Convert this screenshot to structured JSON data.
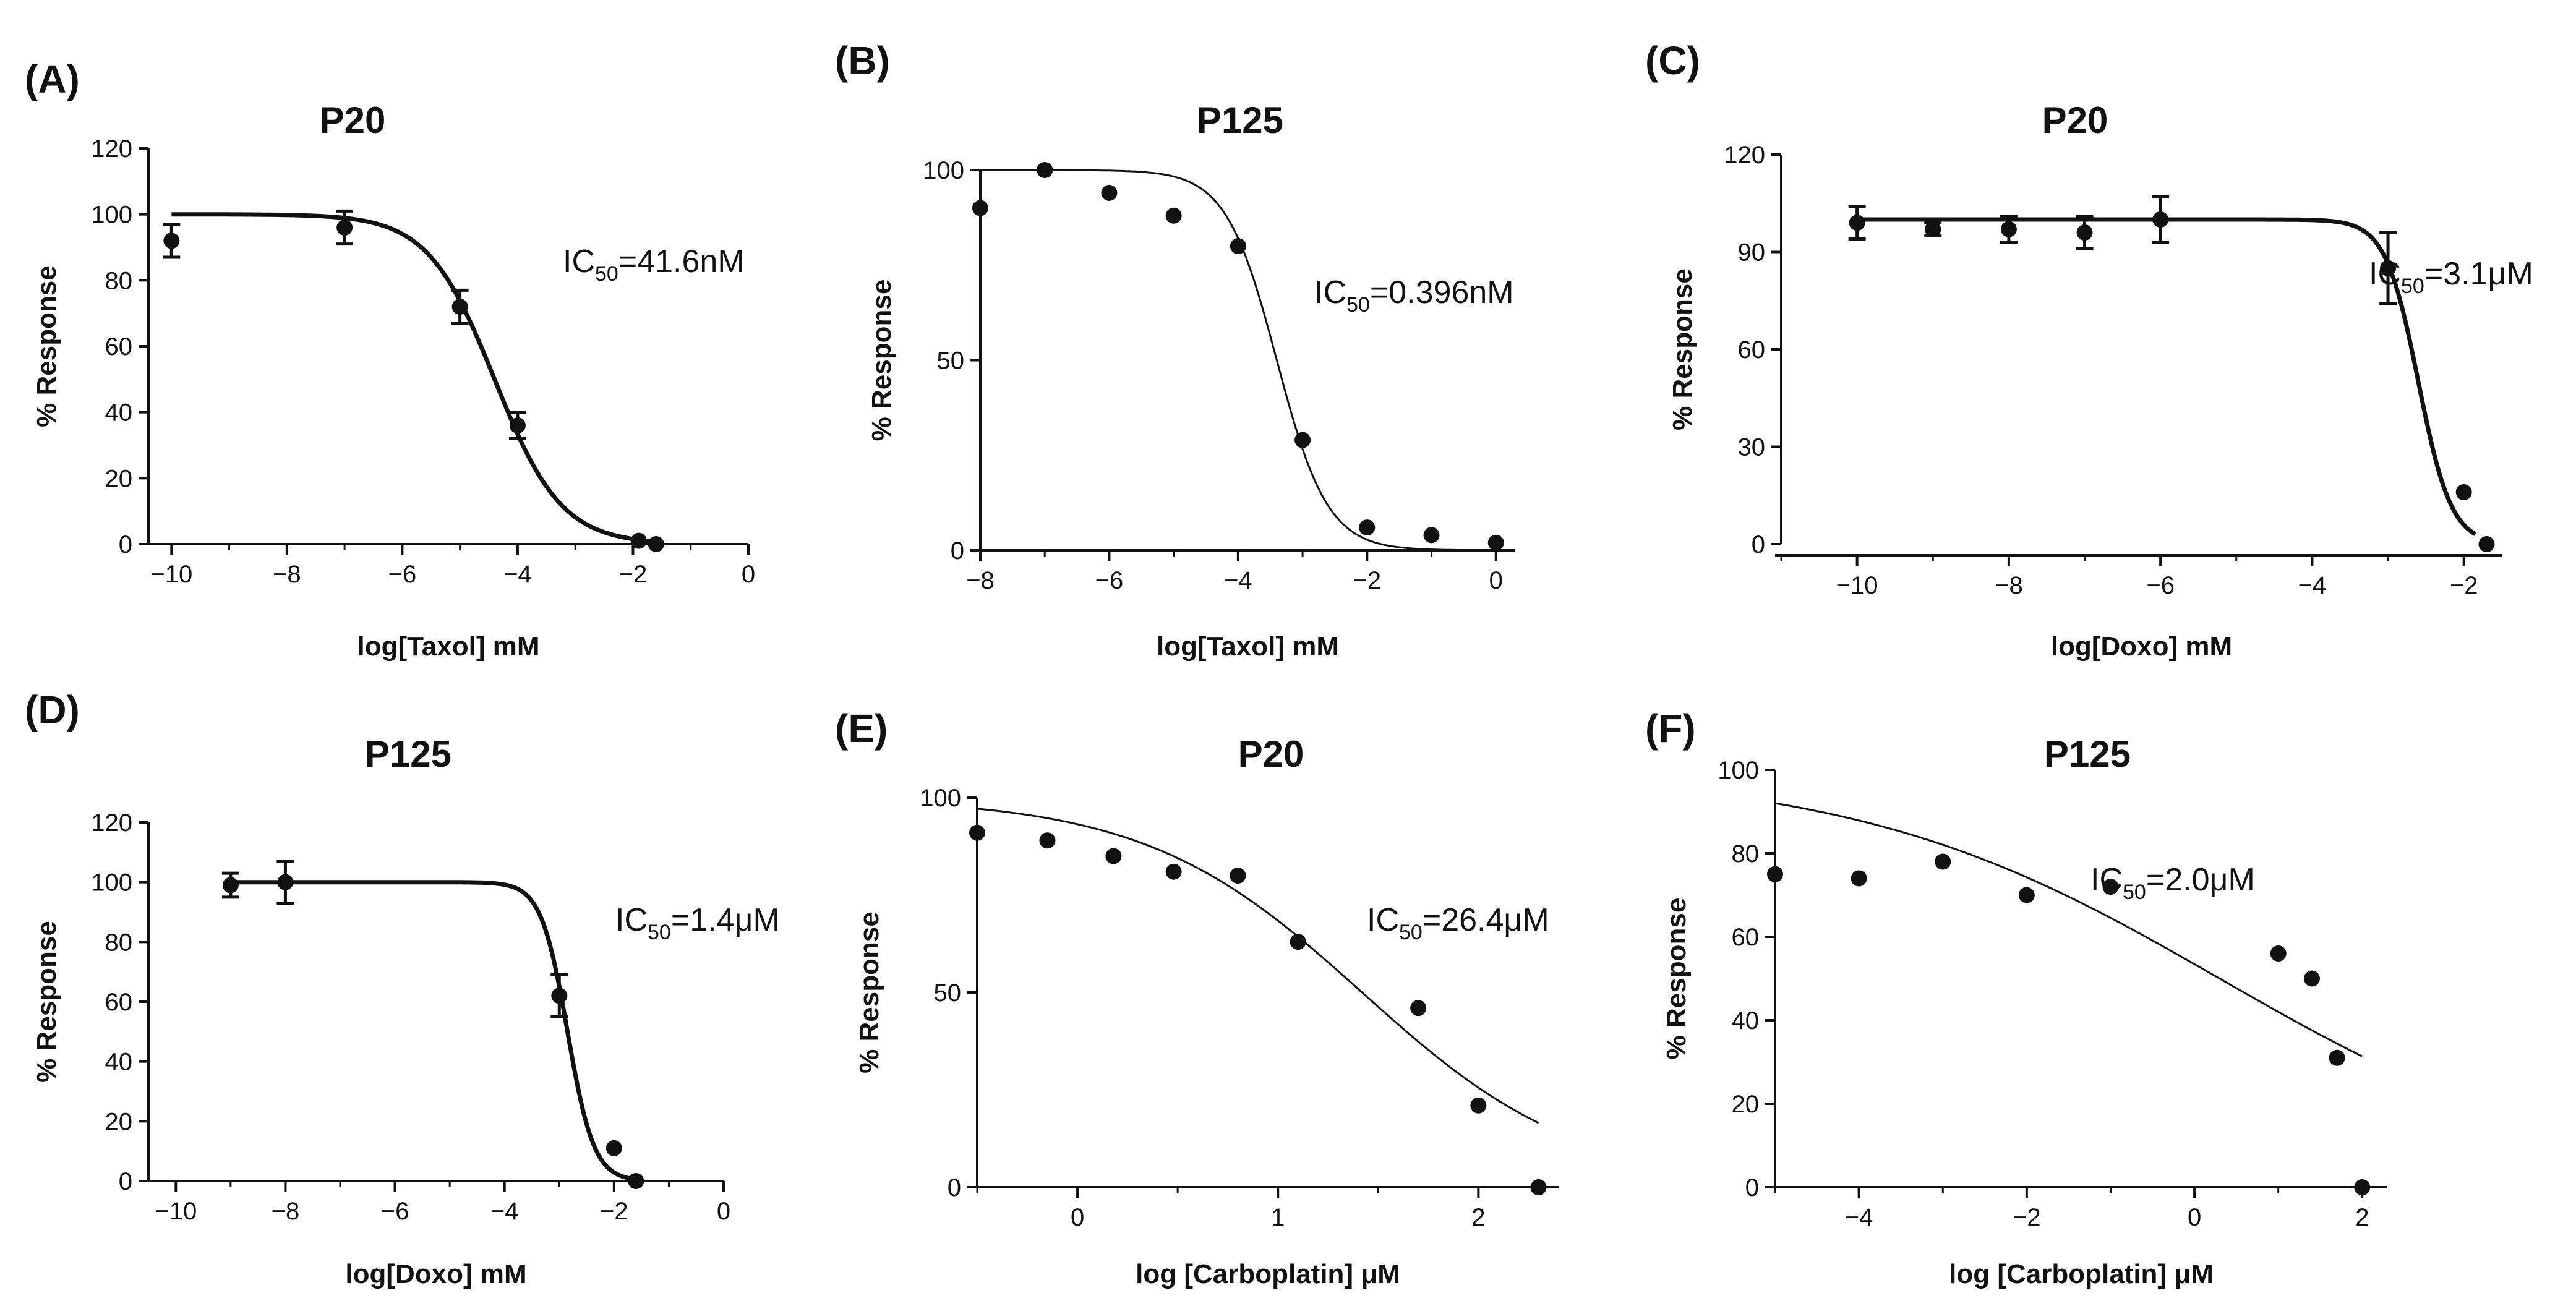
{
  "figure": {
    "background": "#ffffff",
    "ink_color": "#111111"
  },
  "chart_data": [
    {
      "type": "scatter",
      "panel_label": "(A)",
      "title": "P20",
      "xlabel": "log[Taxol] mM",
      "ylabel": "% Response",
      "xlim": [
        -10.4,
        0
      ],
      "ylim": [
        0,
        120
      ],
      "xticks": [
        -10,
        -8,
        -6,
        -4,
        -2,
        0
      ],
      "yticks": [
        0,
        20,
        40,
        60,
        80,
        100,
        120
      ],
      "x_tick_labels": [
        "−10",
        "−8",
        "−6",
        "−4",
        "−2",
        "0"
      ],
      "y_tick_labels": [
        "0",
        "20",
        "40",
        "60",
        "80",
        "100",
        "120"
      ],
      "x_minor_step": 1,
      "ic50": {
        "prefix": "IC",
        "sub": "50",
        "suffix": "=41.6nM"
      },
      "points": [
        {
          "x": -10,
          "y": 92,
          "err": 5
        },
        {
          "x": -7,
          "y": 96,
          "err": 5
        },
        {
          "x": -5,
          "y": 72,
          "err": 5
        },
        {
          "x": -4,
          "y": 36,
          "err": 4
        },
        {
          "x": -1.9,
          "y": 1,
          "err": 0
        },
        {
          "x": -1.6,
          "y": 0,
          "err": 0
        }
      ],
      "curve": {
        "top": 100,
        "bottom": 0,
        "logIC50": -4.4,
        "hill": 0.75,
        "from": -10,
        "to": -1.6
      },
      "style": {
        "curve_width": 7,
        "offset_y_axis": false
      }
    },
    {
      "type": "scatter",
      "panel_label": "(B)",
      "title": "P125",
      "xlabel": "log[Taxol] mM",
      "ylabel": "% Response",
      "xlim": [
        -8,
        0.3
      ],
      "ylim": [
        0,
        100
      ],
      "xticks": [
        -8,
        -6,
        -4,
        -2,
        0
      ],
      "yticks": [
        0,
        50,
        100
      ],
      "x_tick_labels": [
        "−8",
        "−6",
        "−4",
        "−2",
        "0"
      ],
      "y_tick_labels": [
        "0",
        "50",
        "100"
      ],
      "x_minor_step": 1,
      "ic50": {
        "prefix": "IC",
        "sub": "50",
        "suffix": "=0.396nM"
      },
      "points": [
        {
          "x": -8,
          "y": 90,
          "err": 0
        },
        {
          "x": -7,
          "y": 100,
          "err": 0
        },
        {
          "x": -6,
          "y": 94,
          "err": 0
        },
        {
          "x": -5,
          "y": 88,
          "err": 0
        },
        {
          "x": -4,
          "y": 80,
          "err": 0
        },
        {
          "x": -3,
          "y": 29,
          "err": 0
        },
        {
          "x": -2,
          "y": 6,
          "err": 0
        },
        {
          "x": -1,
          "y": 4,
          "err": 0
        },
        {
          "x": 0,
          "y": 2,
          "err": 0
        }
      ],
      "curve": {
        "top": 100,
        "bottom": 0,
        "logIC50": -3.4,
        "hill": 1.1,
        "from": -8,
        "to": 0
      },
      "style": {
        "curve_width": 3,
        "offset_y_axis": false
      }
    },
    {
      "type": "scatter",
      "panel_label": "(C)",
      "title": "P20",
      "xlabel": "log[Doxo] mM",
      "ylabel": "% Response",
      "xlim": [
        -11,
        -1.5
      ],
      "ylim": [
        0,
        120
      ],
      "xticks": [
        -10,
        -8,
        -6,
        -4,
        -2
      ],
      "yticks": [
        0,
        30,
        60,
        90,
        120
      ],
      "x_tick_labels": [
        "−10",
        "−8",
        "−6",
        "−4",
        "−2"
      ],
      "y_tick_labels": [
        "0",
        "30",
        "60",
        "90",
        "120"
      ],
      "x_minor_step": 1,
      "ic50": {
        "prefix": "IC",
        "sub": "50",
        "suffix": "=3.1μM"
      },
      "points": [
        {
          "x": -10,
          "y": 99,
          "err": 5
        },
        {
          "x": -9,
          "y": 97,
          "err": 2
        },
        {
          "x": -8,
          "y": 97,
          "err": 4
        },
        {
          "x": -7,
          "y": 96,
          "err": 5
        },
        {
          "x": -6,
          "y": 100,
          "err": 7
        },
        {
          "x": -3,
          "y": 85,
          "err": 11
        },
        {
          "x": -2,
          "y": 16,
          "err": 0
        },
        {
          "x": -1.7,
          "y": 0,
          "err": 0
        }
      ],
      "curve": {
        "top": 100,
        "bottom": 0,
        "logIC50": -2.6,
        "hill": 2.0,
        "from": -10,
        "to": -1.85
      },
      "style": {
        "curve_width": 7,
        "offset_y_axis": true
      }
    },
    {
      "type": "scatter",
      "panel_label": "(D)",
      "title": "P125",
      "xlabel": "log[Doxo] mM",
      "ylabel": "% Response",
      "xlim": [
        -10.5,
        0
      ],
      "ylim": [
        0,
        120
      ],
      "xticks": [
        -10,
        -8,
        -6,
        -4,
        -2,
        0
      ],
      "yticks": [
        0,
        20,
        40,
        60,
        80,
        100,
        120
      ],
      "x_tick_labels": [
        "−10",
        "−8",
        "−6",
        "−4",
        "−2",
        "0"
      ],
      "y_tick_labels": [
        "0",
        "20",
        "40",
        "60",
        "80",
        "100",
        "120"
      ],
      "x_minor_step": 1,
      "ic50": {
        "prefix": "IC",
        "sub": "50",
        "suffix": "=1.4μM"
      },
      "points": [
        {
          "x": -9,
          "y": 99,
          "err": 4
        },
        {
          "x": -8,
          "y": 100,
          "err": 7
        },
        {
          "x": -3,
          "y": 62,
          "err": 7
        },
        {
          "x": -2,
          "y": 11,
          "err": 0
        },
        {
          "x": -1.6,
          "y": 0,
          "err": 0
        }
      ],
      "curve": {
        "top": 100,
        "bottom": 0,
        "logIC50": -2.85,
        "hill": 1.8,
        "from": -9,
        "to": -1.6
      },
      "style": {
        "curve_width": 7,
        "offset_y_axis": false
      }
    },
    {
      "type": "scatter",
      "panel_label": "(E)",
      "title": "P20",
      "xlabel": "log [Carboplatin] μM",
      "ylabel": "% Response",
      "xlim": [
        -0.5,
        2.4
      ],
      "ylim": [
        0,
        100
      ],
      "xticks": [
        0,
        1,
        2
      ],
      "yticks": [
        0,
        50,
        100
      ],
      "x_tick_labels": [
        "0",
        "1",
        "2"
      ],
      "y_tick_labels": [
        "0",
        "50",
        "100"
      ],
      "x_minor_step": 0.5,
      "ic50": {
        "prefix": "IC",
        "sub": "50",
        "suffix": "=26.4μM"
      },
      "points": [
        {
          "x": -0.5,
          "y": 91,
          "err": 0
        },
        {
          "x": -0.15,
          "y": 89,
          "err": 0
        },
        {
          "x": 0.18,
          "y": 85,
          "err": 0
        },
        {
          "x": 0.48,
          "y": 81,
          "err": 0
        },
        {
          "x": 0.8,
          "y": 80,
          "err": 0
        },
        {
          "x": 1.1,
          "y": 63,
          "err": 0
        },
        {
          "x": 1.7,
          "y": 46,
          "err": 0
        },
        {
          "x": 2.0,
          "y": 21,
          "err": 0
        },
        {
          "x": 2.3,
          "y": 0,
          "err": 0
        }
      ],
      "curve": {
        "top": 100,
        "bottom": 0,
        "logIC50": 1.42,
        "hill": 0.8,
        "from": -0.5,
        "to": 2.3
      },
      "style": {
        "curve_width": 3,
        "offset_y_axis": false
      }
    },
    {
      "type": "scatter",
      "panel_label": "(F)",
      "title": "P125",
      "xlabel": "log [Carboplatin] μM",
      "ylabel": "% Response",
      "xlim": [
        -5,
        2.3
      ],
      "ylim": [
        0,
        100
      ],
      "xticks": [
        -4,
        -2,
        0,
        2
      ],
      "yticks": [
        0,
        20,
        40,
        60,
        80,
        100
      ],
      "x_tick_labels": [
        "−4",
        "−2",
        "0",
        "2"
      ],
      "y_tick_labels": [
        "0",
        "20",
        "40",
        "60",
        "80",
        "100"
      ],
      "x_minor_step": 1,
      "ic50": {
        "prefix": "IC",
        "sub": "50",
        "suffix": "=2.0μM"
      },
      "points": [
        {
          "x": -5,
          "y": 75,
          "err": 0
        },
        {
          "x": -4,
          "y": 74,
          "err": 0
        },
        {
          "x": -3,
          "y": 78,
          "err": 0
        },
        {
          "x": -2,
          "y": 70,
          "err": 0
        },
        {
          "x": -1,
          "y": 72,
          "err": 0
        },
        {
          "x": 1,
          "y": 56,
          "err": 0
        },
        {
          "x": 1.4,
          "y": 50,
          "err": 0
        },
        {
          "x": 1.7,
          "y": 31,
          "err": 0
        },
        {
          "x": 2,
          "y": 0,
          "err": 0
        }
      ],
      "curve": {
        "top": 100,
        "bottom": 0,
        "logIC50": 0.3,
        "hill": 0.2,
        "from": -5,
        "to": 2
      },
      "style": {
        "curve_width": 3,
        "offset_y_axis": false
      }
    }
  ]
}
